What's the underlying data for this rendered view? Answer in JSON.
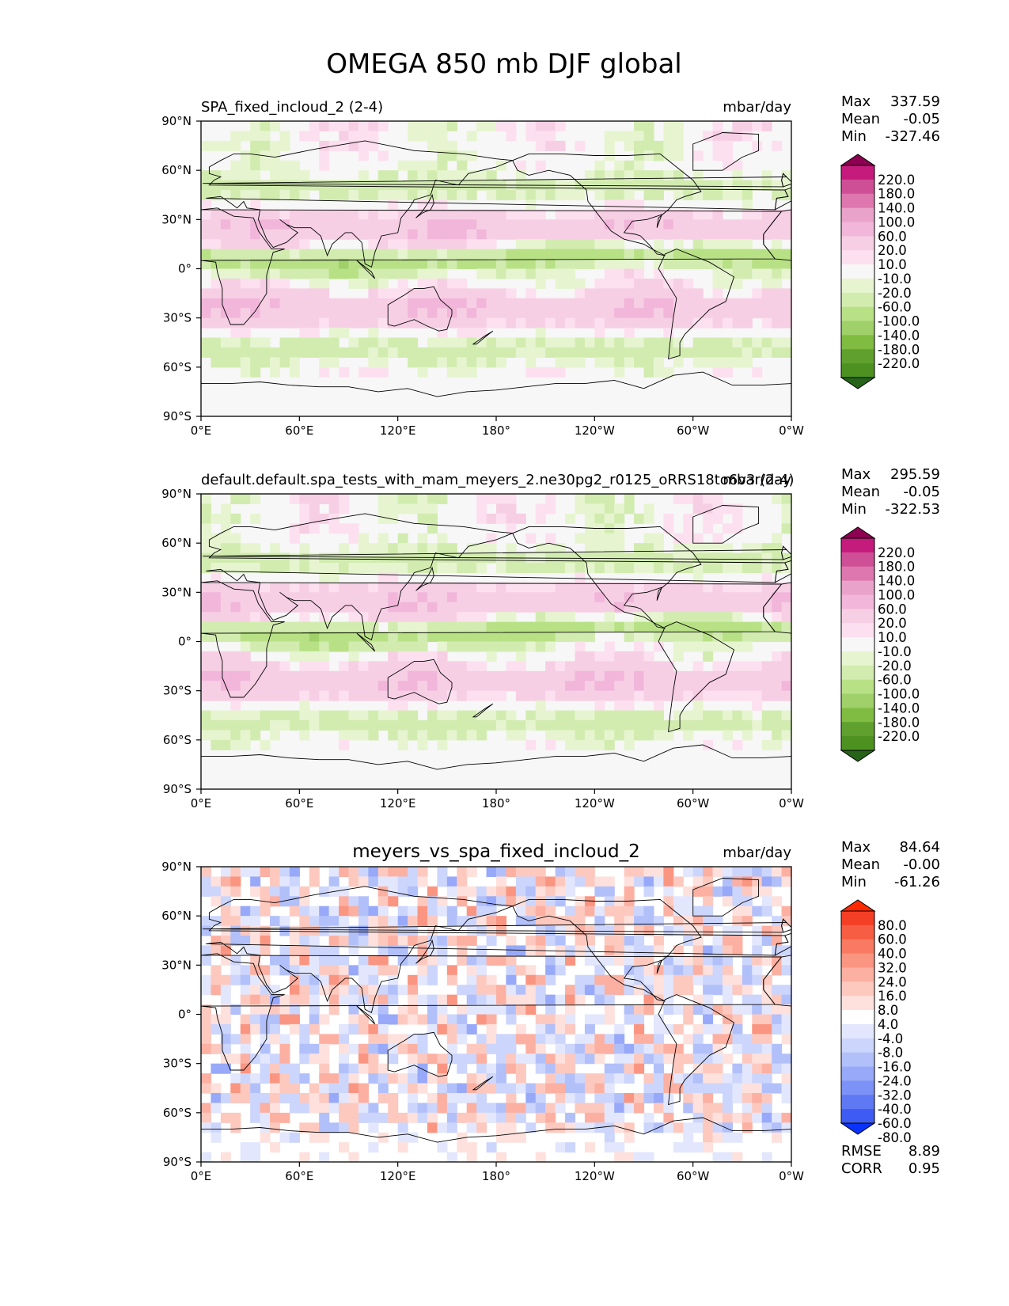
{
  "figure_title": "OMEGA 850 mb DJF global",
  "colors": {
    "seq_positive": [
      "#f7f7f7",
      "#fde0ef",
      "#f7cfe4",
      "#f1b6da",
      "#e9a3cb",
      "#de77ae",
      "#cf4f97",
      "#c51b7d",
      "#8e0152"
    ],
    "seq_negative": [
      "#f7f7f7",
      "#e6f5d0",
      "#d2ecb0",
      "#b8e186",
      "#9fd06a",
      "#7fbc41",
      "#5fa02e",
      "#4d9221",
      "#276419"
    ],
    "diff_positive": [
      "#ffffff",
      "#fee1dc",
      "#fdc9bf",
      "#fcb0a2",
      "#fa9581",
      "#f87a62",
      "#f65d43",
      "#f43f26",
      "#ff2a00"
    ],
    "diff_negative": [
      "#ffffff",
      "#e2e7fd",
      "#ccd5fc",
      "#b2c0fa",
      "#97a9f8",
      "#7d92f6",
      "#5f78f4",
      "#3e5cf3",
      "#0a32ff"
    ]
  },
  "chart_data": [
    {
      "type": "heatmap",
      "title": "SPA_fixed_incloud_2 (2-4)",
      "units": "mbar/day",
      "stats": {
        "max_label": "Max",
        "max": "337.59",
        "mean_label": "Mean",
        "mean": "-0.05",
        "min_label": "Min",
        "min": "-327.46"
      },
      "colorbar_levels": [
        "220.0",
        "180.0",
        "140.0",
        "100.0",
        "60.0",
        "20.0",
        "10.0",
        "-10.0",
        "-20.0",
        "-60.0",
        "-100.0",
        "-140.0",
        "-180.0",
        "-220.0"
      ],
      "xticks": [
        "0°E",
        "60°E",
        "120°E",
        "180°",
        "120°W",
        "60°W",
        "0°W"
      ],
      "yticks": [
        "90°N",
        "60°N",
        "30°N",
        "0°",
        "30°S",
        "60°S",
        "90°S"
      ],
      "xlim": [
        0,
        360
      ],
      "ylim": [
        -90,
        90
      ]
    },
    {
      "type": "heatmap",
      "title": "default.default.spa_tests_with_mam_meyers_2.ne30pg2_r0125_oRRS18to6v3 (2-4)",
      "units": "mbar/day",
      "stats": {
        "max_label": "Max",
        "max": "295.59",
        "mean_label": "Mean",
        "mean": "-0.05",
        "min_label": "Min",
        "min": "-322.53"
      },
      "colorbar_levels": [
        "220.0",
        "180.0",
        "140.0",
        "100.0",
        "60.0",
        "20.0",
        "10.0",
        "-10.0",
        "-20.0",
        "-60.0",
        "-100.0",
        "-140.0",
        "-180.0",
        "-220.0"
      ],
      "xticks": [
        "0°E",
        "60°E",
        "120°E",
        "180°",
        "120°W",
        "60°W",
        "0°W"
      ],
      "yticks": [
        "90°N",
        "60°N",
        "30°N",
        "0°",
        "30°S",
        "60°S",
        "90°S"
      ],
      "xlim": [
        0,
        360
      ],
      "ylim": [
        -90,
        90
      ]
    },
    {
      "type": "heatmap",
      "title": "meyers_vs_spa_fixed_incloud_2",
      "units": "mbar/day",
      "stats": {
        "max_label": "Max",
        "max": "84.64",
        "mean_label": "Mean",
        "mean": "-0.00",
        "min_label": "Min",
        "min": "-61.26"
      },
      "rmse_label": "RMSE",
      "rmse": "8.89",
      "corr_label": "CORR",
      "corr": "0.95",
      "colorbar_levels": [
        "80.0",
        "60.0",
        "40.0",
        "32.0",
        "24.0",
        "16.0",
        "8.0",
        "4.0",
        "-4.0",
        "-8.0",
        "-16.0",
        "-24.0",
        "-32.0",
        "-40.0",
        "-60.0",
        "-80.0"
      ],
      "xticks": [
        "0°E",
        "60°E",
        "120°E",
        "180°",
        "120°W",
        "60°W",
        "0°W"
      ],
      "yticks": [
        "90°N",
        "60°N",
        "30°N",
        "0°",
        "30°S",
        "60°S",
        "90°S"
      ],
      "xlim": [
        0,
        360
      ],
      "ylim": [
        -90,
        90
      ]
    }
  ]
}
